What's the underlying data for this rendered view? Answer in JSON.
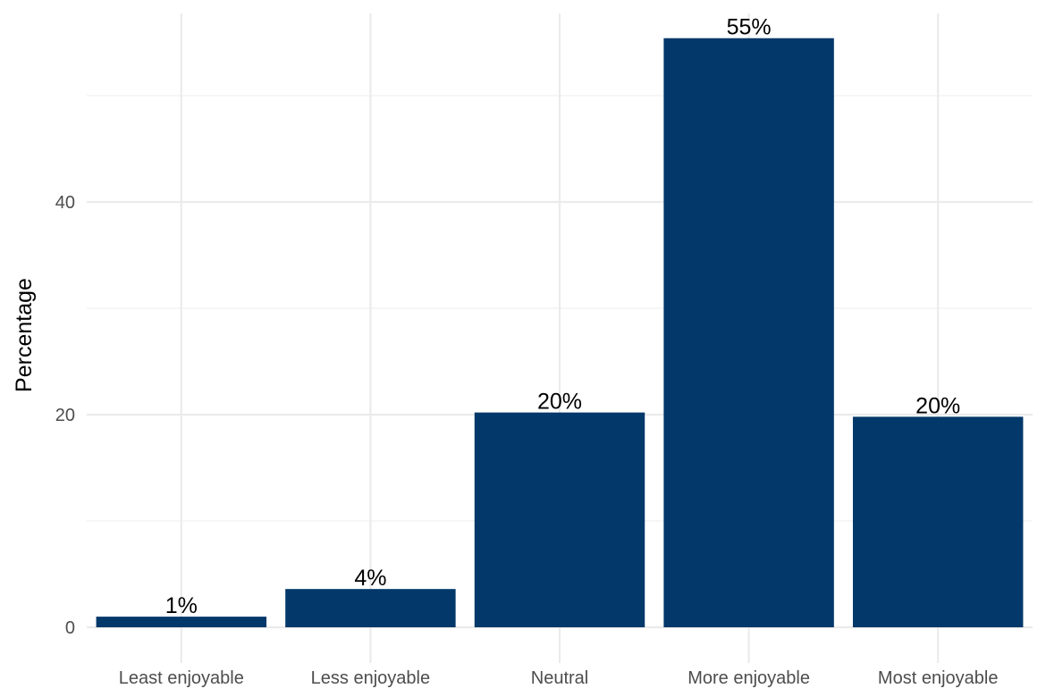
{
  "chart_data": {
    "type": "bar",
    "categories": [
      "Least enjoyable",
      "Less enjoyable",
      "Neutral",
      "More enjoyable",
      "Most enjoyable"
    ],
    "values": [
      1.0,
      3.6,
      20.2,
      55.4,
      19.8
    ],
    "data_labels": [
      "1%",
      "4%",
      "20%",
      "55%",
      "20%"
    ],
    "title": "",
    "xlabel": "",
    "ylabel": "Percentage",
    "ylim": [
      0,
      58
    ],
    "yticks": [
      0,
      20,
      40
    ],
    "grid": true,
    "bar_color": "#03386A"
  }
}
